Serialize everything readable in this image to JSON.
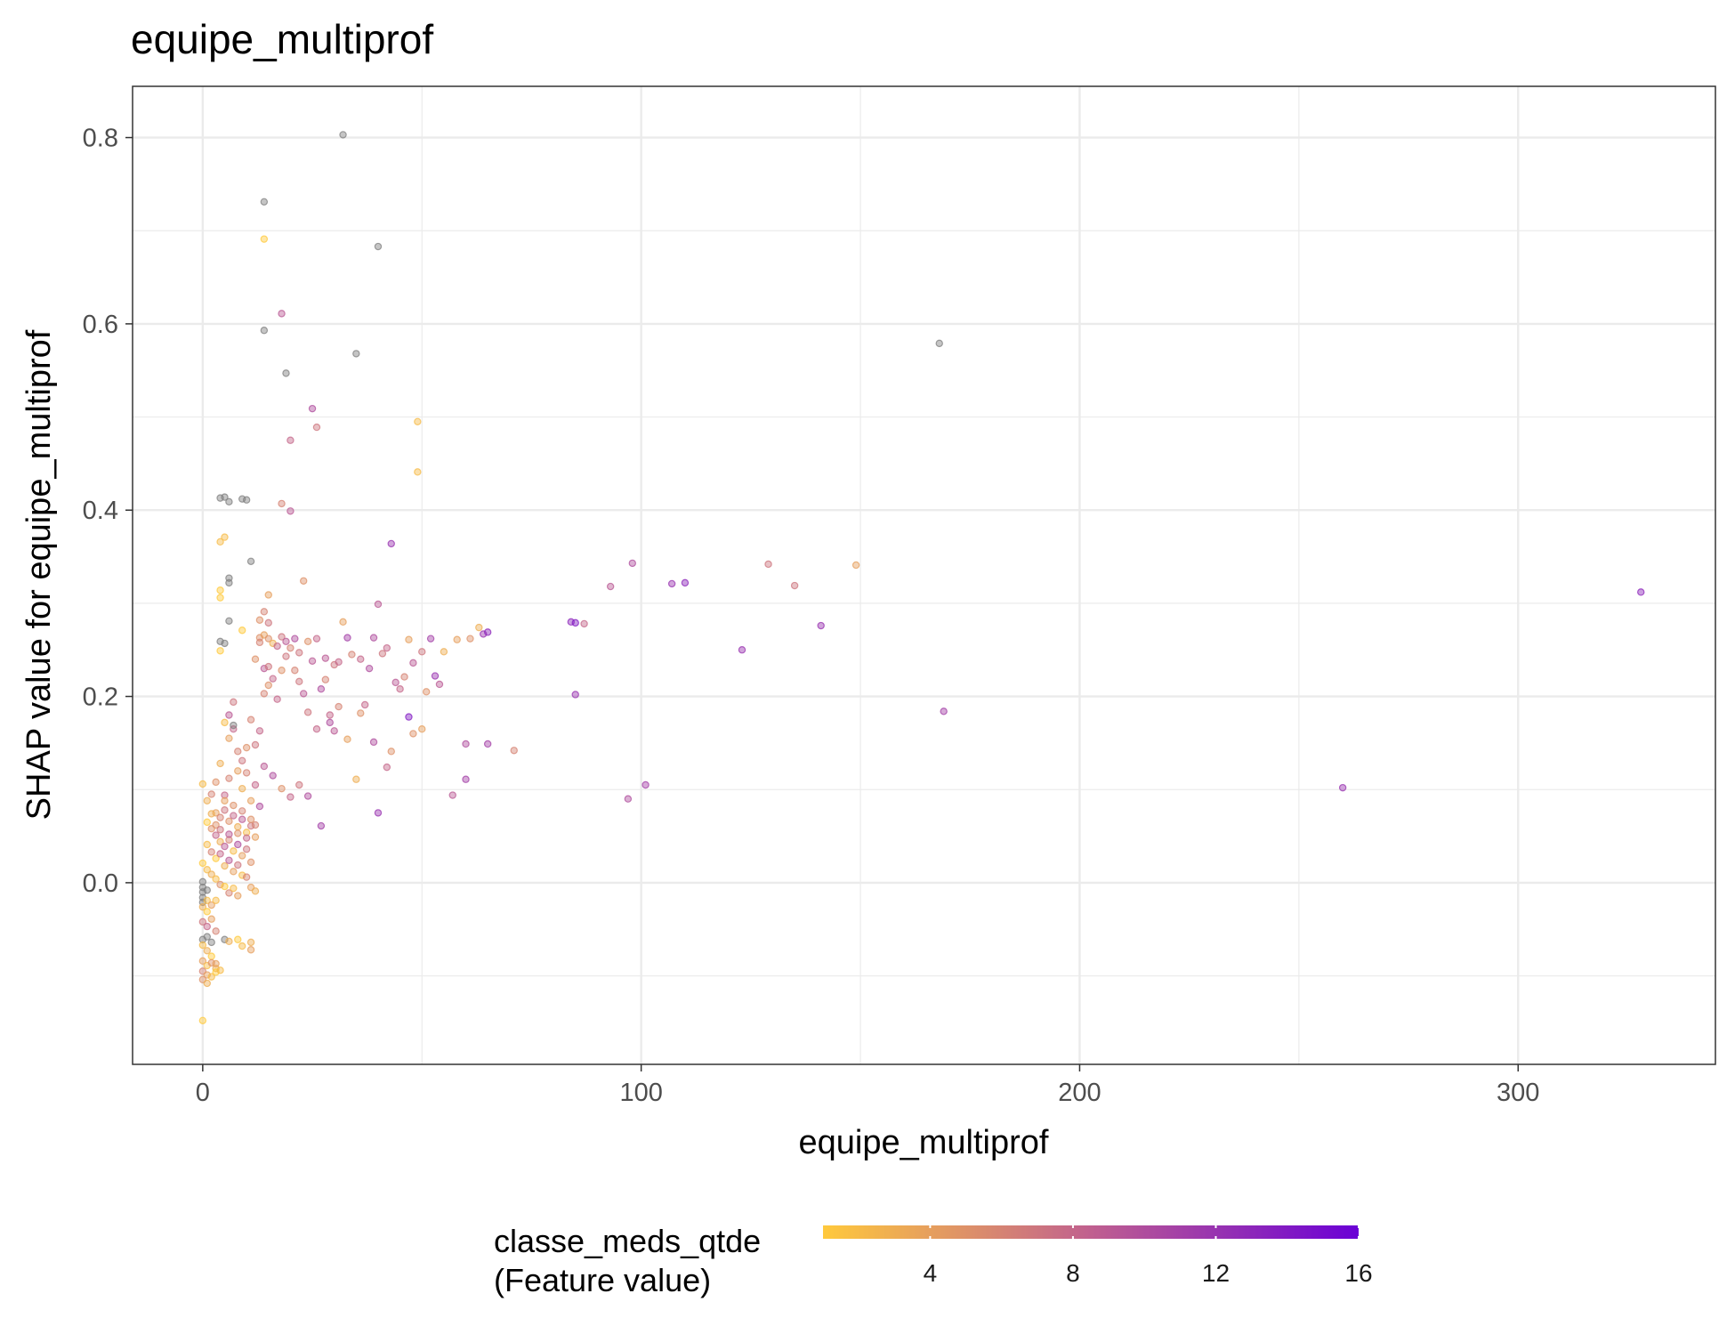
{
  "chart_data": {
    "type": "scatter",
    "title": "equipe_multiprof",
    "xlabel": "equipe_multiprof",
    "ylabel": "SHAP value for equipe_multiprof",
    "xlim": [
      -16,
      345
    ],
    "ylim": [
      -0.195,
      0.855
    ],
    "x_ticks": [
      0,
      100,
      200,
      300
    ],
    "y_ticks": [
      0.0,
      0.2,
      0.4,
      0.6,
      0.8
    ],
    "x_tick_labels": [
      "0",
      "100",
      "200",
      "300"
    ],
    "y_tick_labels": [
      "0.0",
      "0.2",
      "0.4",
      "0.6",
      "0.8"
    ],
    "grid": true,
    "legend": {
      "title_line1": "classe_meds_qtde",
      "title_line2": "(Feature value)",
      "placement": "bottom",
      "min": 1,
      "max": 16,
      "ticks": [
        4,
        8,
        12,
        16
      ],
      "tick_labels": [
        "4",
        "8",
        "12",
        "16"
      ],
      "color_low": "#FFC93C",
      "color_mid": "#C0608F",
      "color_high": "#6A00D6",
      "na_color": "#7F7F7F"
    },
    "points": [
      [
        32,
        0.803,
        null
      ],
      [
        14,
        0.731,
        null
      ],
      [
        40,
        0.683,
        null
      ],
      [
        14,
        0.691,
        1
      ],
      [
        14,
        0.593,
        null
      ],
      [
        18,
        0.611,
        9
      ],
      [
        19,
        0.547,
        null
      ],
      [
        35,
        0.568,
        null
      ],
      [
        168,
        0.579,
        null
      ],
      [
        25,
        0.509,
        10
      ],
      [
        26,
        0.489,
        7
      ],
      [
        20,
        0.475,
        8
      ],
      [
        49,
        0.495,
        2
      ],
      [
        49,
        0.441,
        2
      ],
      [
        4,
        0.413,
        null
      ],
      [
        5,
        0.414,
        null
      ],
      [
        6,
        0.409,
        null
      ],
      [
        9,
        0.412,
        null
      ],
      [
        10,
        0.411,
        null
      ],
      [
        18,
        0.407,
        6
      ],
      [
        20,
        0.399,
        9
      ],
      [
        4,
        0.366,
        2
      ],
      [
        5,
        0.371,
        2
      ],
      [
        43,
        0.364,
        12
      ],
      [
        11,
        0.345,
        null
      ],
      [
        6,
        0.327,
        null
      ],
      [
        6,
        0.322,
        null
      ],
      [
        4,
        0.314,
        1
      ],
      [
        4,
        0.306,
        1
      ],
      [
        15,
        0.309,
        4
      ],
      [
        23,
        0.324,
        5
      ],
      [
        6,
        0.281,
        null
      ],
      [
        4,
        0.259,
        null
      ],
      [
        5,
        0.257,
        null
      ],
      [
        4,
        0.249,
        1
      ],
      [
        9,
        0.271,
        1
      ],
      [
        13,
        0.263,
        5
      ],
      [
        14,
        0.266,
        4
      ],
      [
        15,
        0.262,
        5
      ],
      [
        16,
        0.257,
        3
      ],
      [
        17,
        0.254,
        8
      ],
      [
        18,
        0.264,
        7
      ],
      [
        19,
        0.259,
        9
      ],
      [
        20,
        0.252,
        6
      ],
      [
        21,
        0.262,
        10
      ],
      [
        22,
        0.247,
        7
      ],
      [
        24,
        0.259,
        5
      ],
      [
        26,
        0.262,
        8
      ],
      [
        28,
        0.241,
        9
      ],
      [
        30,
        0.234,
        7
      ],
      [
        32,
        0.28,
        4
      ],
      [
        33,
        0.263,
        11
      ],
      [
        34,
        0.245,
        6
      ],
      [
        36,
        0.24,
        8
      ],
      [
        38,
        0.23,
        10
      ],
      [
        40,
        0.299,
        9
      ],
      [
        41,
        0.246,
        7
      ],
      [
        42,
        0.252,
        8
      ],
      [
        44,
        0.215,
        9
      ],
      [
        46,
        0.221,
        6
      ],
      [
        47,
        0.261,
        4
      ],
      [
        48,
        0.236,
        9
      ],
      [
        50,
        0.248,
        7
      ],
      [
        52,
        0.262,
        11
      ],
      [
        53,
        0.222,
        12
      ],
      [
        55,
        0.248,
        3
      ],
      [
        58,
        0.261,
        4
      ],
      [
        61,
        0.262,
        5
      ],
      [
        63,
        0.274,
        3
      ],
      [
        64,
        0.267,
        12
      ],
      [
        65,
        0.269,
        13
      ],
      [
        84,
        0.28,
        13
      ],
      [
        85,
        0.279,
        14
      ],
      [
        87,
        0.278,
        8
      ],
      [
        93,
        0.318,
        9
      ],
      [
        98,
        0.343,
        10
      ],
      [
        107,
        0.321,
        12
      ],
      [
        110,
        0.322,
        13
      ],
      [
        129,
        0.342,
        7
      ],
      [
        135,
        0.319,
        7
      ],
      [
        149,
        0.341,
        4
      ],
      [
        141,
        0.276,
        12
      ],
      [
        123,
        0.25,
        12
      ],
      [
        85,
        0.202,
        12
      ],
      [
        169,
        0.184,
        11
      ],
      [
        328,
        0.312,
        13
      ],
      [
        14,
        0.23,
        9
      ],
      [
        15,
        0.212,
        5
      ],
      [
        17,
        0.197,
        8
      ],
      [
        18,
        0.228,
        5
      ],
      [
        22,
        0.216,
        7
      ],
      [
        23,
        0.203,
        9
      ],
      [
        27,
        0.208,
        10
      ],
      [
        29,
        0.18,
        8
      ],
      [
        30,
        0.163,
        9
      ],
      [
        31,
        0.189,
        6
      ],
      [
        33,
        0.154,
        4
      ],
      [
        35,
        0.111,
        3
      ],
      [
        37,
        0.191,
        8
      ],
      [
        39,
        0.151,
        10
      ],
      [
        42,
        0.124,
        8
      ],
      [
        47,
        0.178,
        14
      ],
      [
        48,
        0.16,
        5
      ],
      [
        50,
        0.165,
        4
      ],
      [
        60,
        0.149,
        10
      ],
      [
        65,
        0.149,
        11
      ],
      [
        71,
        0.142,
        6
      ],
      [
        57,
        0.094,
        9
      ],
      [
        60,
        0.111,
        11
      ],
      [
        97,
        0.09,
        10
      ],
      [
        101,
        0.105,
        11
      ],
      [
        260,
        0.102,
        12
      ],
      [
        40,
        0.075,
        12
      ],
      [
        27,
        0.061,
        11
      ],
      [
        24,
        0.093,
        10
      ],
      [
        22,
        0.105,
        7
      ],
      [
        20,
        0.092,
        8
      ],
      [
        18,
        0.101,
        5
      ],
      [
        16,
        0.115,
        10
      ],
      [
        14,
        0.125,
        9
      ],
      [
        12,
        0.148,
        7
      ],
      [
        10,
        0.145,
        5
      ],
      [
        8,
        0.141,
        6
      ],
      [
        7,
        0.165,
        8
      ],
      [
        6,
        0.155,
        4
      ],
      [
        5,
        0.172,
        2
      ],
      [
        4,
        0.128,
        3
      ],
      [
        3,
        0.108,
        5
      ],
      [
        2,
        0.095,
        6
      ],
      [
        1,
        0.088,
        3
      ],
      [
        0,
        0.106,
        2
      ],
      [
        7,
        0.194,
        7
      ],
      [
        6,
        0.18,
        9
      ],
      [
        7,
        0.169,
        null
      ],
      [
        10,
        0.118,
        6
      ],
      [
        9,
        0.101,
        3
      ],
      [
        12,
        0.105,
        8
      ],
      [
        11,
        0.088,
        4
      ],
      [
        13,
        0.082,
        10
      ],
      [
        3,
        0.075,
        4
      ],
      [
        4,
        0.07,
        6
      ],
      [
        5,
        0.078,
        7
      ],
      [
        6,
        0.066,
        5
      ],
      [
        7,
        0.072,
        8
      ],
      [
        8,
        0.06,
        3
      ],
      [
        9,
        0.068,
        9
      ],
      [
        10,
        0.054,
        2
      ],
      [
        11,
        0.061,
        7
      ],
      [
        12,
        0.049,
        4
      ],
      [
        2,
        0.058,
        5
      ],
      [
        3,
        0.051,
        8
      ],
      [
        4,
        0.044,
        3
      ],
      [
        5,
        0.039,
        9
      ],
      [
        6,
        0.046,
        6
      ],
      [
        7,
        0.034,
        2
      ],
      [
        8,
        0.041,
        10
      ],
      [
        9,
        0.029,
        4
      ],
      [
        10,
        0.036,
        7
      ],
      [
        11,
        0.022,
        5
      ],
      [
        1,
        0.041,
        2
      ],
      [
        2,
        0.033,
        6
      ],
      [
        3,
        0.026,
        1
      ],
      [
        4,
        0.031,
        8
      ],
      [
        5,
        0.018,
        3
      ],
      [
        6,
        0.024,
        9
      ],
      [
        7,
        0.012,
        4
      ],
      [
        8,
        0.019,
        7
      ],
      [
        9,
        0.008,
        2
      ],
      [
        10,
        0.006,
        6
      ],
      [
        11,
        -0.005,
        4
      ],
      [
        12,
        -0.009,
        3
      ],
      [
        0,
        0.021,
        1
      ],
      [
        1,
        0.014,
        2
      ],
      [
        2,
        0.009,
        3
      ],
      [
        3,
        0.004,
        2
      ],
      [
        4,
        -0.002,
        5
      ],
      [
        5,
        -0.004,
        1
      ],
      [
        6,
        -0.011,
        6
      ],
      [
        7,
        -0.006,
        2
      ],
      [
        8,
        -0.014,
        4
      ],
      [
        0,
        0.001,
        null
      ],
      [
        0,
        -0.005,
        null
      ],
      [
        0,
        -0.01,
        null
      ],
      [
        0,
        -0.016,
        null
      ],
      [
        0,
        -0.021,
        null
      ],
      [
        1,
        -0.008,
        null
      ],
      [
        1,
        -0.019,
        2
      ],
      [
        0,
        -0.026,
        3
      ],
      [
        1,
        -0.031,
        1
      ],
      [
        2,
        -0.024,
        4
      ],
      [
        3,
        -0.019,
        2
      ],
      [
        0,
        -0.042,
        7
      ],
      [
        1,
        -0.047,
        8
      ],
      [
        2,
        -0.039,
        4
      ],
      [
        3,
        -0.052,
        6
      ],
      [
        1,
        -0.058,
        null
      ],
      [
        0,
        -0.061,
        null
      ],
      [
        2,
        -0.064,
        null
      ],
      [
        5,
        -0.061,
        null
      ],
      [
        6,
        -0.063,
        3
      ],
      [
        8,
        -0.061,
        1
      ],
      [
        9,
        -0.068,
        2
      ],
      [
        11,
        -0.064,
        3
      ],
      [
        11,
        -0.072,
        4
      ],
      [
        0,
        -0.067,
        2
      ],
      [
        1,
        -0.073,
        3
      ],
      [
        2,
        -0.079,
        1
      ],
      [
        0,
        -0.084,
        4
      ],
      [
        1,
        -0.089,
        2
      ],
      [
        2,
        -0.086,
        5
      ],
      [
        3,
        -0.092,
        3
      ],
      [
        0,
        -0.095,
        6
      ],
      [
        1,
        -0.099,
        4
      ],
      [
        2,
        -0.101,
        2
      ],
      [
        3,
        -0.096,
        1
      ],
      [
        0,
        -0.104,
        5
      ],
      [
        1,
        -0.108,
        3
      ],
      [
        0,
        -0.148,
        1
      ],
      [
        4,
        -0.094,
        2
      ],
      [
        3,
        -0.087,
        4
      ],
      [
        13,
        0.258,
        6
      ],
      [
        15,
        0.232,
        7
      ],
      [
        16,
        0.219,
        8
      ],
      [
        19,
        0.243,
        7
      ],
      [
        21,
        0.228,
        6
      ],
      [
        25,
        0.238,
        9
      ],
      [
        26,
        0.165,
        8
      ],
      [
        29,
        0.172,
        10
      ],
      [
        24,
        0.183,
        7
      ],
      [
        28,
        0.218,
        6
      ],
      [
        31,
        0.237,
        8
      ],
      [
        36,
        0.182,
        5
      ],
      [
        39,
        0.263,
        10
      ],
      [
        43,
        0.141,
        5
      ],
      [
        45,
        0.208,
        8
      ],
      [
        51,
        0.205,
        5
      ],
      [
        54,
        0.213,
        9
      ],
      [
        13,
        0.282,
        5
      ],
      [
        14,
        0.291,
        6
      ],
      [
        15,
        0.279,
        7
      ],
      [
        14,
        0.203,
        6
      ],
      [
        12,
        0.24,
        5
      ],
      [
        11,
        0.175,
        6
      ],
      [
        13,
        0.163,
        8
      ],
      [
        9,
        0.131,
        7
      ],
      [
        8,
        0.12,
        4
      ],
      [
        6,
        0.112,
        6
      ],
      [
        5,
        0.094,
        8
      ],
      [
        3,
        0.062,
        5
      ],
      [
        4,
        0.057,
        7
      ],
      [
        6,
        0.052,
        9
      ],
      [
        8,
        0.053,
        5
      ],
      [
        10,
        0.048,
        8
      ],
      [
        12,
        0.062,
        6
      ],
      [
        7,
        0.083,
        5
      ],
      [
        9,
        0.077,
        6
      ],
      [
        11,
        0.068,
        5
      ],
      [
        5,
        0.088,
        4
      ],
      [
        2,
        0.074,
        3
      ],
      [
        1,
        0.065,
        1
      ]
    ]
  }
}
